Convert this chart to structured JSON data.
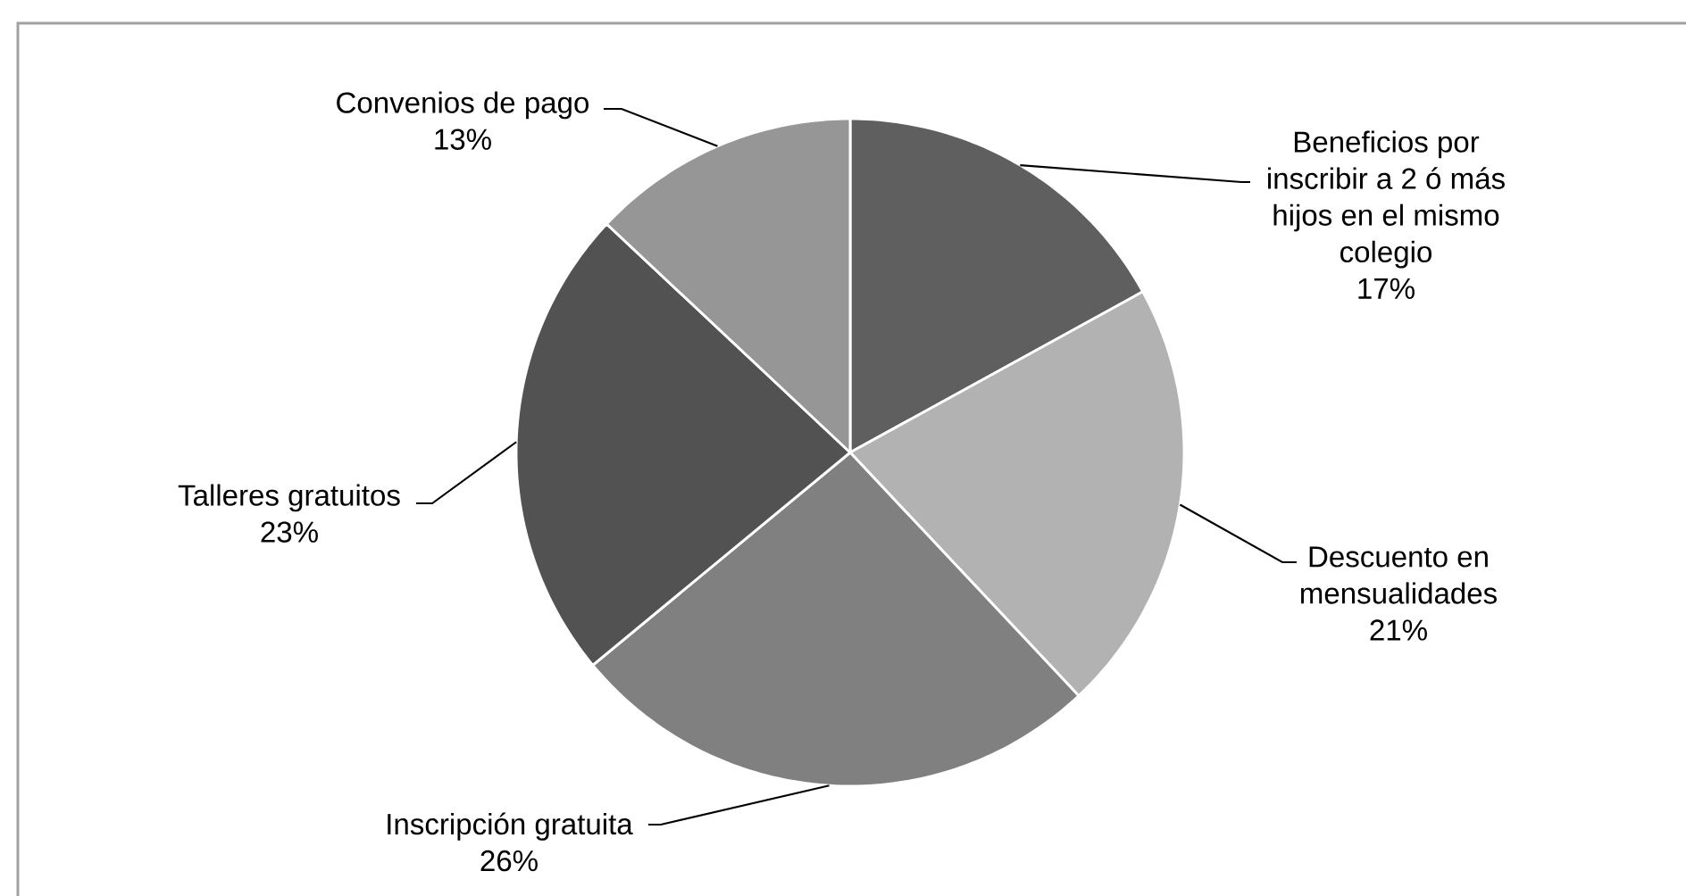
{
  "chart_data": {
    "type": "pie",
    "categories": [
      "Beneficios por inscribir a 2 ó más hijos en el mismo colegio",
      "Descuento en mensualidades",
      "Inscripción gratuita",
      "Talleres gratuitos",
      "Convenios de pago"
    ],
    "values": [
      17,
      21,
      26,
      23,
      13
    ],
    "value_labels": [
      "17%",
      "21%",
      "26%",
      "23%",
      "13%"
    ],
    "colors": [
      "#5f5f5f",
      "#b2b2b2",
      "#808080",
      "#525252",
      "#969696"
    ]
  }
}
